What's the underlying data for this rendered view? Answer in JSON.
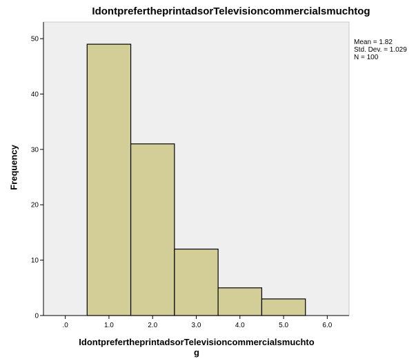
{
  "chart_data": {
    "type": "bar",
    "title": "IdontprefertheprintadsorTelevisioncommercialsmuchtog",
    "xlabel_lines": [
      "IdontprefertheprintadsorTelevisioncommercialsmuchto",
      "g"
    ],
    "ylabel": "Frequency",
    "bins": [
      {
        "x0": 0.5,
        "x1": 1.5,
        "value": 49
      },
      {
        "x0": 1.5,
        "x1": 2.5,
        "value": 31
      },
      {
        "x0": 2.5,
        "x1": 3.5,
        "value": 12
      },
      {
        "x0": 3.5,
        "x1": 4.5,
        "value": 5
      },
      {
        "x0": 4.5,
        "x1": 5.5,
        "value": 3
      }
    ],
    "xlim": [
      -0.5,
      6.5
    ],
    "ylim": [
      0,
      53
    ],
    "xticks": [
      0,
      1,
      2,
      3,
      4,
      5,
      6
    ],
    "xtick_labels": [
      ".0",
      "1.0",
      "2.0",
      "3.0",
      "4.0",
      "5.0",
      "6.0"
    ],
    "yticks": [
      0,
      10,
      20,
      30,
      40,
      50
    ],
    "ytick_labels": [
      "0",
      "10",
      "20",
      "30",
      "40",
      "50"
    ],
    "grid": false,
    "stats": [
      "Mean = 1.82",
      "Std. Dev. = 1.029",
      "N = 100"
    ],
    "colors": {
      "bar_fill": "#d3ce97",
      "bar_stroke": "#000000",
      "plot_bg": "#efefef",
      "frame": "#c9c9c9"
    }
  }
}
